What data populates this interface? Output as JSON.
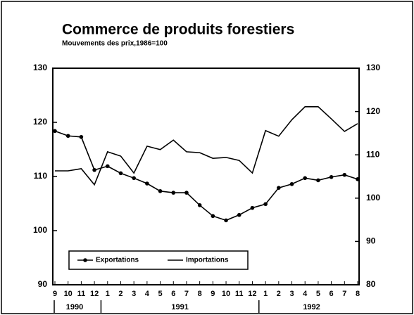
{
  "chart_data": {
    "type": "line",
    "title": "Commerce de produits forestiers",
    "subtitle": "Mouvements des prix,1986=100",
    "categories": [
      "9",
      "10",
      "11",
      "12",
      "1",
      "2",
      "3",
      "4",
      "5",
      "6",
      "7",
      "8",
      "9",
      "10",
      "11",
      "12",
      "1",
      "2",
      "3",
      "4",
      "5",
      "6",
      "7",
      "8"
    ],
    "years": [
      "1990",
      "1991",
      "1992"
    ],
    "series": [
      {
        "name": "Exportations",
        "color": "#000000",
        "axis": "y",
        "marker": true,
        "values": [
          118.4,
          117.5,
          117.3,
          111.2,
          111.9,
          110.6,
          109.7,
          108.7,
          107.3,
          107.0,
          107.0,
          104.7,
          102.7,
          101.9,
          102.9,
          104.2,
          104.9,
          107.9,
          108.6,
          109.7,
          109.3,
          109.9,
          110.3,
          109.5
        ]
      },
      {
        "name": "Importations",
        "color": "#000000",
        "axis": "y2",
        "marker": false,
        "values": [
          106.3,
          106.3,
          106.8,
          103.1,
          110.7,
          109.7,
          105.8,
          112.0,
          111.2,
          113.4,
          110.7,
          110.5,
          109.2,
          109.4,
          108.7,
          105.8,
          115.6,
          114.3,
          118.1,
          121.1,
          121.1,
          118.3,
          115.4,
          117.2
        ]
      }
    ],
    "ylim": [
      90,
      130
    ],
    "yticks": [
      90,
      100,
      110,
      120,
      130
    ],
    "y2lim": [
      80,
      130
    ],
    "y2ticks": [
      80,
      90,
      100,
      110,
      120,
      130
    ],
    "legend_position": "lower left"
  }
}
